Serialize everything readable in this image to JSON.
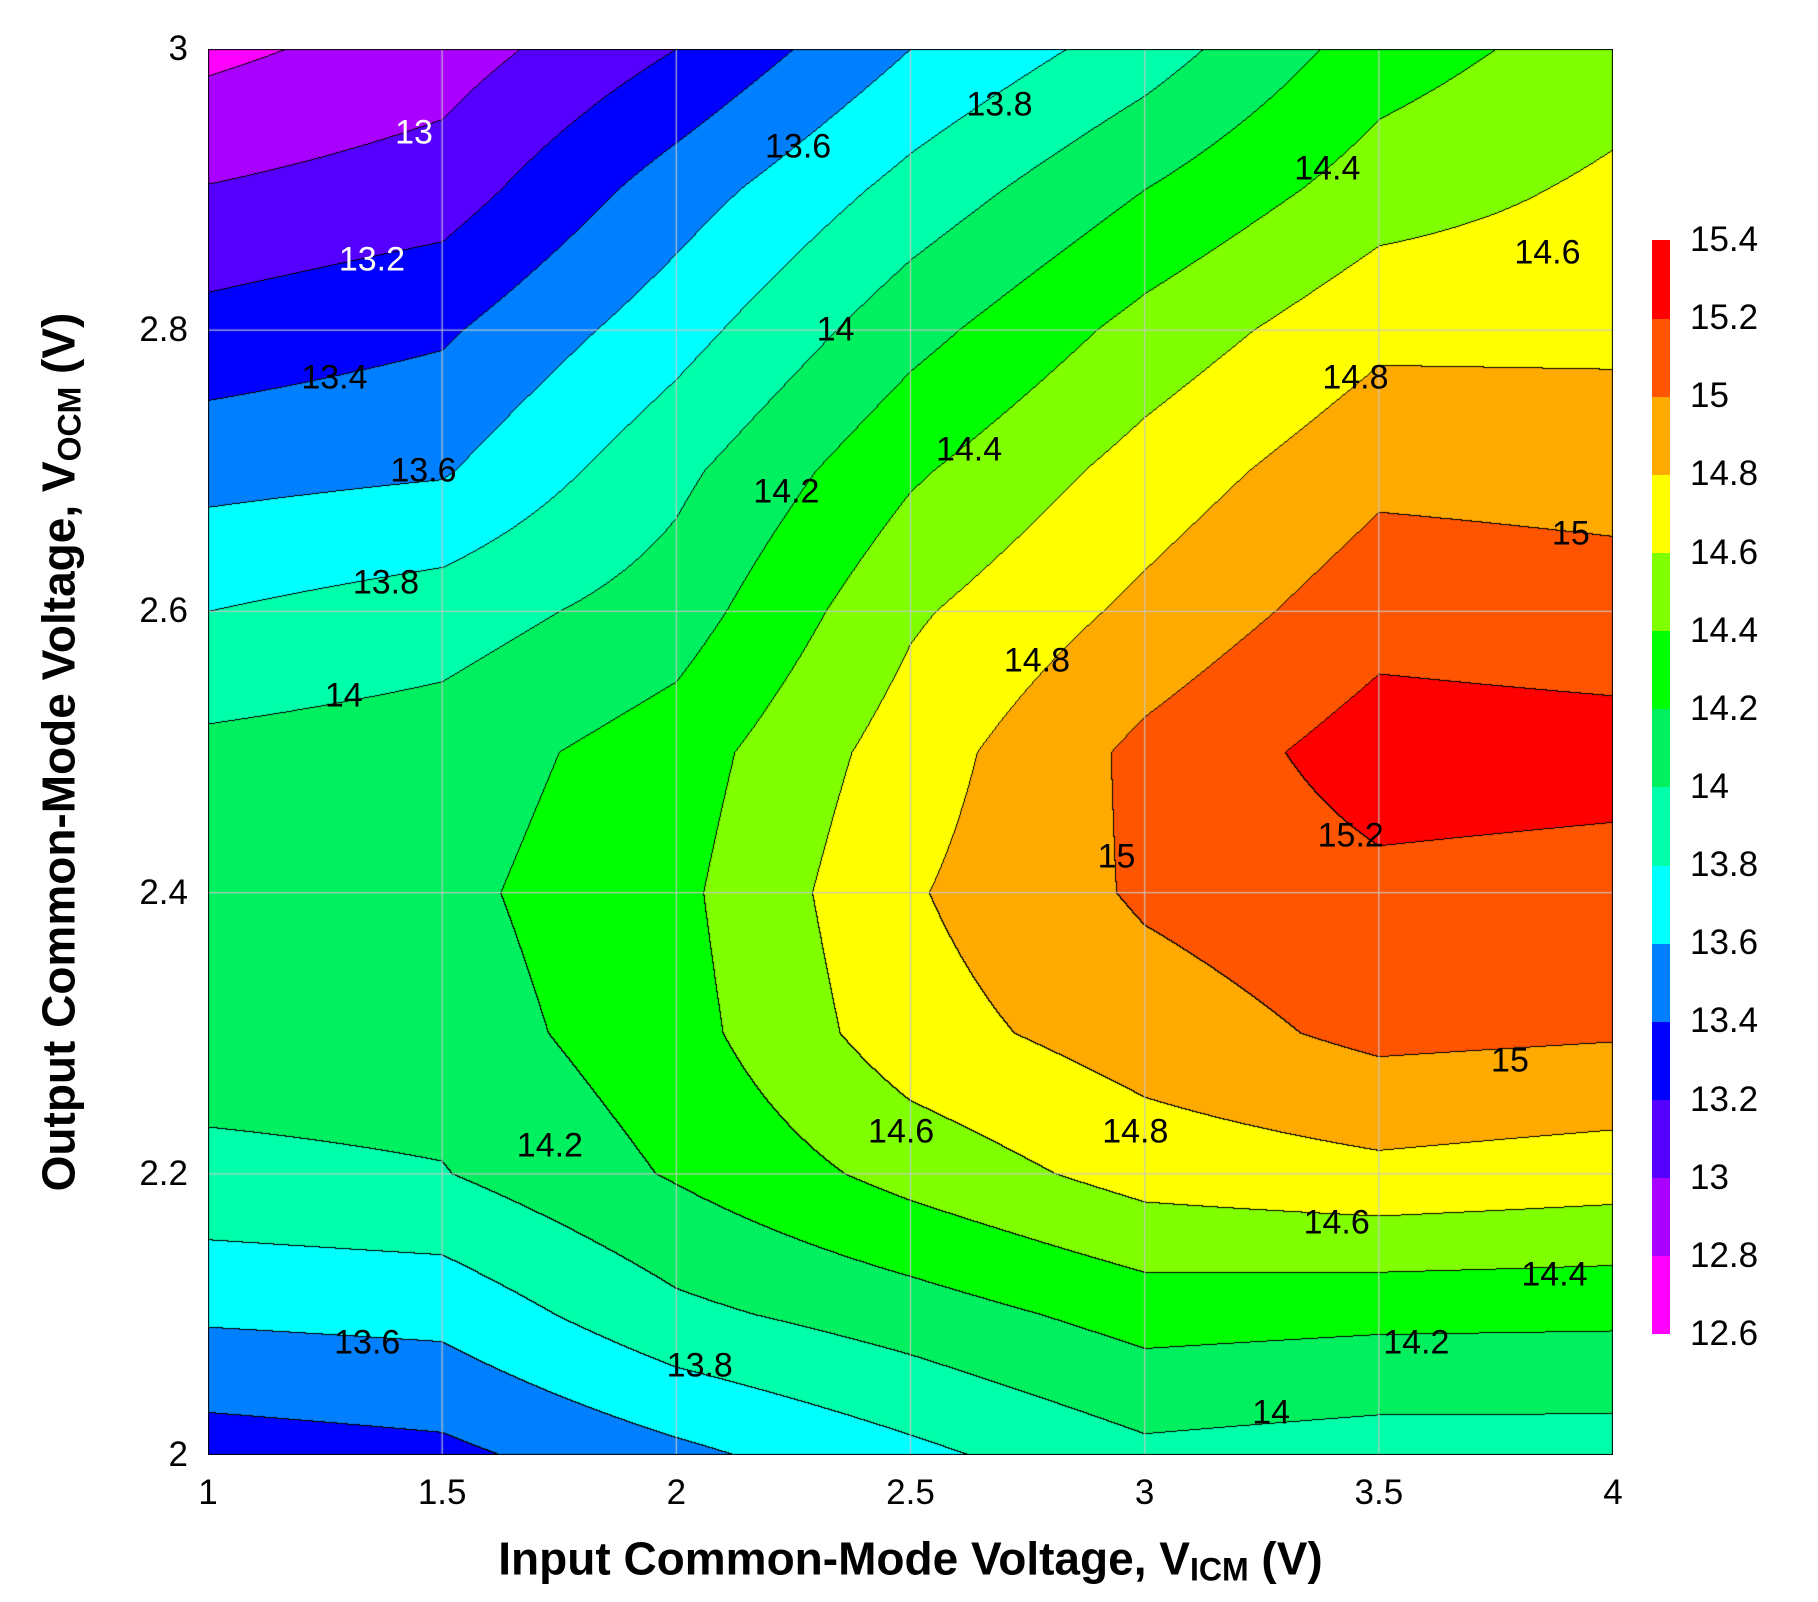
{
  "chart_data": {
    "type": "heatmap",
    "subtype": "filled-contour",
    "xlabel": "Input Common-Mode Voltage, V",
    "xlabel_sub": "ICM",
    "xlabel_unit": " (V)",
    "ylabel": "Output Common-Mode Voltage, V",
    "ylabel_sub": "OCM",
    "ylabel_unit": " (V)",
    "xlim": [
      1,
      4
    ],
    "ylim": [
      2,
      3
    ],
    "x_ticks": [
      "1",
      "1.5",
      "2",
      "2.5",
      "3",
      "3.5",
      "4"
    ],
    "y_ticks": [
      "2",
      "2.2",
      "2.4",
      "2.6",
      "2.8",
      "3"
    ],
    "grid": true,
    "x": [
      1,
      1.5,
      2,
      2.5,
      3,
      3.5,
      4
    ],
    "y": [
      2.0,
      2.1,
      2.2,
      2.3,
      2.4,
      2.5,
      2.6,
      2.7,
      2.8,
      2.9,
      3.0
    ],
    "z_columns_by_x": [
      [
        13.3,
        13.63,
        13.95,
        14.1,
        14.15,
        14.05,
        13.8,
        13.53,
        13.27,
        13.01,
        12.75
      ],
      [
        13.35,
        13.66,
        13.99,
        14.1,
        14.15,
        14.1,
        13.9,
        13.58,
        13.37,
        13.1,
        12.9
      ],
      [
        13.55,
        13.95,
        14.22,
        14.32,
        14.35,
        14.3,
        14.1,
        13.95,
        13.72,
        13.5,
        13.2
      ],
      [
        13.75,
        14.1,
        14.47,
        14.72,
        14.78,
        14.7,
        14.57,
        14.37,
        14.13,
        13.87,
        13.6
      ],
      [
        13.95,
        14.28,
        14.68,
        14.9,
        15.03,
        15.05,
        14.85,
        14.68,
        14.47,
        14.2,
        13.9
      ],
      [
        13.9,
        14.25,
        14.75,
        15.05,
        15.15,
        15.3,
        15.12,
        14.95,
        14.75,
        14.5,
        14.3
      ],
      [
        13.9,
        14.24,
        14.7,
        15.02,
        15.12,
        15.28,
        15.08,
        14.93,
        14.75,
        14.64,
        14.5
      ]
    ],
    "levels": [
      12.6,
      12.8,
      13.0,
      13.2,
      13.4,
      13.6,
      13.8,
      14.0,
      14.2,
      14.4,
      14.6,
      14.8,
      15.0,
      15.2,
      15.4
    ],
    "level_labels": [
      "12.6",
      "12.8",
      "13",
      "13.2",
      "13.4",
      "13.6",
      "13.8",
      "14",
      "14.2",
      "14.4",
      "14.6",
      "14.8",
      "15",
      "15.2",
      "15.4"
    ],
    "band_colors": [
      "#FF00FF",
      "#AA00FF",
      "#5500FF",
      "#0000FF",
      "#0080FF",
      "#00FFFF",
      "#00FFAA",
      "#00F060",
      "#00FF00",
      "#80FF00",
      "#FFFF00",
      "#FFAA00",
      "#FF5500",
      "#FF0000"
    ],
    "colorbar_position": "right",
    "contour_labels": [
      {
        "text": "13",
        "x": 1.44,
        "y": 2.94,
        "color": "#FFFFFF"
      },
      {
        "text": "13.2",
        "x": 1.35,
        "y": 2.85,
        "color": "#FFFFFF"
      },
      {
        "text": "13.4",
        "x": 1.27,
        "y": 2.766
      },
      {
        "text": "13.6",
        "x": 1.46,
        "y": 2.7
      },
      {
        "text": "13.8",
        "x": 1.38,
        "y": 2.62
      },
      {
        "text": "14",
        "x": 1.29,
        "y": 2.54
      },
      {
        "text": "13.6",
        "x": 2.26,
        "y": 2.93
      },
      {
        "text": "13.8",
        "x": 2.69,
        "y": 2.96
      },
      {
        "text": "14",
        "x": 2.34,
        "y": 2.8
      },
      {
        "text": "14.2",
        "x": 2.235,
        "y": 2.685
      },
      {
        "text": "14.4",
        "x": 2.625,
        "y": 2.715
      },
      {
        "text": "14.4",
        "x": 3.39,
        "y": 2.915
      },
      {
        "text": "14.6",
        "x": 3.86,
        "y": 2.855
      },
      {
        "text": "14.8",
        "x": 3.45,
        "y": 2.766
      },
      {
        "text": "15",
        "x": 3.91,
        "y": 2.655
      },
      {
        "text": "14.8",
        "x": 2.77,
        "y": 2.565
      },
      {
        "text": "15",
        "x": 2.94,
        "y": 2.425
      },
      {
        "text": "15.2",
        "x": 3.44,
        "y": 2.44
      },
      {
        "text": "15",
        "x": 3.78,
        "y": 2.28
      },
      {
        "text": "14.8",
        "x": 2.98,
        "y": 2.23
      },
      {
        "text": "14.6",
        "x": 2.48,
        "y": 2.23
      },
      {
        "text": "14.2",
        "x": 1.73,
        "y": 2.22
      },
      {
        "text": "14.6",
        "x": 3.41,
        "y": 2.165
      },
      {
        "text": "14.4",
        "x": 3.875,
        "y": 2.128
      },
      {
        "text": "14.2",
        "x": 3.58,
        "y": 2.08
      },
      {
        "text": "14",
        "x": 3.27,
        "y": 2.03
      },
      {
        "text": "13.8",
        "x": 2.05,
        "y": 2.063
      },
      {
        "text": "13.6",
        "x": 1.34,
        "y": 2.08
      }
    ]
  }
}
